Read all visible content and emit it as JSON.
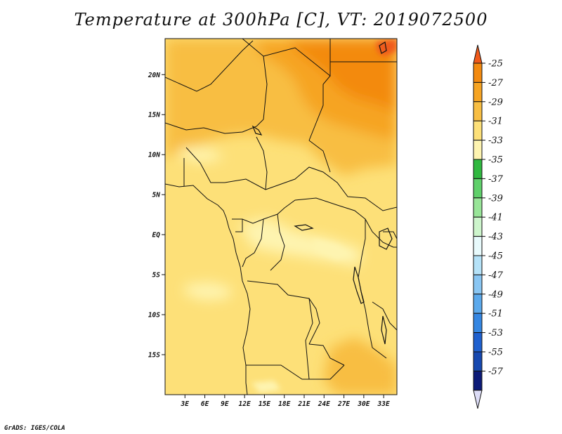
{
  "title": "Temperature at 300hPa [C], VT: 2019072500",
  "credit": "GrADS: IGES/COLA",
  "map": {
    "lat_ticks": [
      "20N",
      "15N",
      "10N",
      "5N",
      "EQ",
      "5S",
      "10S",
      "15S"
    ],
    "lon_ticks": [
      "3E",
      "6E",
      "9E",
      "12E",
      "15E",
      "18E",
      "21E",
      "24E",
      "27E",
      "30E",
      "33E"
    ],
    "lon_range": [
      0,
      35
    ],
    "lat_range": [
      -20,
      24.5
    ]
  },
  "colorbar": {
    "labels": [
      "-25",
      "-27",
      "-29",
      "-31",
      "-33",
      "-35",
      "-37",
      "-39",
      "-41",
      "-43",
      "-45",
      "-47",
      "-49",
      "-51",
      "-53",
      "-55",
      "-57"
    ],
    "colors": [
      "#f05a1a",
      "#f38a0f",
      "#f6a422",
      "#f8be42",
      "#fde078",
      "#fef4b0",
      "#2fb83f",
      "#5fd06a",
      "#98e598",
      "#cdf5cc",
      "#e8fafc",
      "#b5e2f8",
      "#89c6f3",
      "#5ba9ec",
      "#3486e2",
      "#1e60cf",
      "#1648b0",
      "#0c1a78",
      "#dcdcf6"
    ]
  },
  "chart_data": {
    "type": "heatmap",
    "title": "Temperature at 300hPa [C], VT: 2019072500",
    "x_ticks": [
      "3E",
      "6E",
      "9E",
      "12E",
      "15E",
      "18E",
      "21E",
      "24E",
      "27E",
      "30E",
      "33E"
    ],
    "y_ticks": [
      "20N",
      "15N",
      "10N",
      "5N",
      "EQ",
      "5S",
      "10S",
      "15S"
    ],
    "xlim": [
      0,
      35
    ],
    "ylim": [
      -20,
      24.5
    ],
    "colorbar_levels": [
      -25,
      -27,
      -29,
      -31,
      -33,
      -35,
      -37,
      -39,
      -41,
      -43,
      -45,
      -47,
      -49,
      -51,
      -53,
      -55,
      -57
    ],
    "value_range_shown": [
      -35,
      -25
    ]
  }
}
